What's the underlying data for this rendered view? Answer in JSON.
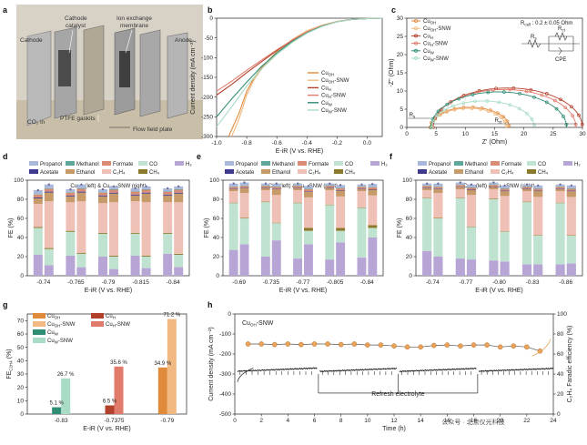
{
  "panel_labels": {
    "a": "a",
    "b": "b",
    "c": "c",
    "d": "d",
    "e": "e",
    "f": "f",
    "g": "g",
    "h": "h"
  },
  "colors": {
    "propanol": "#a9b8da",
    "methanol": "#5fa79b",
    "formate": "#d98b73",
    "co": "#bfe3d0",
    "h2": "#b7a5d6",
    "acetate": "#3e3b8f",
    "ethanol": "#c79a6a",
    "c2h4": "#efc0b6",
    "ch4": "#8c7a2c",
    "cuoh": "#e08a3c",
    "cuoh_snw": "#f1b981",
    "cuh": "#b2412b",
    "cuh_snw": "#e07a6a",
    "cuw": "#2f8c75",
    "cuw_snw": "#a8dcc6",
    "trend": "#e8a25a"
  },
  "photo": {
    "labels": [
      {
        "key": "cathode",
        "text": "Cathode"
      },
      {
        "key": "cathode_catalyst_1",
        "text": "Cathode"
      },
      {
        "key": "cathode_catalyst_2",
        "text": "catalyst"
      },
      {
        "key": "ion_1",
        "text": "Ion exchange"
      },
      {
        "key": "ion_2",
        "text": "membrane"
      },
      {
        "key": "anode",
        "text": "Anode"
      },
      {
        "key": "co2",
        "text": "CO₂ in"
      },
      {
        "key": "ptfe",
        "text": "PTFE gaskits"
      },
      {
        "key": "flow",
        "text": "Flow field plate"
      }
    ]
  },
  "panel_b": {
    "title": "",
    "xlabel": "E-iR (V vs. RHE)",
    "ylabel": "Current density (mA cm⁻²)",
    "xlim": [
      -1.0,
      0.1
    ],
    "ylim": [
      -300,
      0
    ],
    "xticks": [
      "-1.0",
      "-0.8",
      "-0.6",
      "-0.4",
      "-0.2",
      "0.0"
    ],
    "yticks": [
      "0",
      "-50",
      "-100",
      "-150",
      "-200",
      "-250",
      "-300"
    ],
    "legend": [
      "Cu_OH",
      "Cu_OH-SNW",
      "Cu_H",
      "Cu_H-SNW",
      "Cu_W",
      "Cu_W-SNW"
    ],
    "legend_display": [
      {
        "base": "Cu",
        "sub": "OH",
        "suffix": ""
      },
      {
        "base": "Cu",
        "sub": "OH",
        "suffix": "-SNW"
      },
      {
        "base": "Cu",
        "sub": "H",
        "suffix": ""
      },
      {
        "base": "Cu",
        "sub": "H",
        "suffix": "-SNW"
      },
      {
        "base": "Cu",
        "sub": "W",
        "suffix": ""
      },
      {
        "base": "Cu",
        "sub": "W",
        "suffix": "-SNW"
      }
    ]
  },
  "panel_c": {
    "xlabel": "Z' (Ohm)",
    "ylabel": "-Z'' (Ohm)",
    "xlim": [
      0,
      30
    ],
    "ylim": [
      0,
      30
    ],
    "xticks": [
      "0",
      "5",
      "10",
      "15",
      "20",
      "25",
      "30"
    ],
    "yticks": [
      "0",
      "5",
      "10",
      "15",
      "20",
      "25",
      "30"
    ],
    "annotation": "R_cell : 0.2 ± 0.05 Ohm",
    "annotation_parts": {
      "base": "R",
      "sub": "cell",
      "rest": " : 0.2 ± 0.05 Ohm"
    },
    "r_label": "R",
    "r_sub": "s",
    "rct_label": "R",
    "rct_sub": "ct",
    "cpe": "CPE"
  },
  "fe_legend": [
    {
      "key": "propanol",
      "text": "Propanol"
    },
    {
      "key": "methanol",
      "text": "Methanol"
    },
    {
      "key": "formate",
      "text": "Formate"
    },
    {
      "key": "co",
      "text": "CO"
    },
    {
      "key": "h2",
      "text": "H₂"
    },
    {
      "key": "acetate",
      "text": "Acetate"
    },
    {
      "key": "ethanol",
      "text": "Ethanol"
    },
    {
      "key": "c2h4",
      "text": "C₂H₄"
    },
    {
      "key": "ch4",
      "text": "CH₄"
    }
  ],
  "panel_d": {
    "subtitle": "Cu_OH (left) & Cu_OH-SNW (right)",
    "sub_parts": [
      "Cu",
      "OH",
      " (left) & Cu",
      "OH",
      "-SNW (right)"
    ],
    "xlabel": "E-iR (V vs. RHE)",
    "ylabel": "FE (%)",
    "categories": [
      "-0.74",
      "-0.765",
      "-0.79",
      "-0.815",
      "-0.84"
    ],
    "yticks": [
      "0",
      "20",
      "40",
      "60",
      "80",
      "100"
    ]
  },
  "panel_e": {
    "subtitle": "Cu_H (left) & Cu_H-SNW (right)",
    "sub_parts": [
      "Cu",
      "H",
      " (left) & Cu",
      "H",
      "-SNW (right)"
    ],
    "xlabel": "E-iR (V vs. RHE)",
    "ylabel": "FE (%)",
    "categories": [
      "-0.69",
      "-0.735",
      "-0.77",
      "-0.805",
      "-0.84"
    ],
    "yticks": [
      "0",
      "20",
      "40",
      "60",
      "80",
      "100"
    ]
  },
  "panel_f": {
    "subtitle": "Cu_W (left) & Cu_W-SNW (right)",
    "sub_parts": [
      "Cu",
      "W",
      " (left) & Cu",
      "W",
      "-SNW (right)"
    ],
    "xlabel": "E-iR (V vs. RHE)",
    "ylabel": "FE (%)",
    "categories": [
      "-0.74",
      "-0.77",
      "-0.80",
      "-0.83",
      "-0.86"
    ],
    "yticks": [
      "0",
      "20",
      "40",
      "60",
      "80",
      "100"
    ]
  },
  "panel_g": {
    "xlabel": "E-iR (V vs. RHE)",
    "ylabel": "FE_C2H4 (%)",
    "ylabel_parts": {
      "base": "FE",
      "sub": "C2H4",
      "rest": " (%)"
    },
    "categories": [
      "-0.83",
      "-0.7375",
      "-0.79"
    ],
    "yticks": [
      "0",
      "10",
      "20",
      "30",
      "40",
      "50",
      "60",
      "70"
    ],
    "value_labels": [
      "5.1 %",
      "26.7 %",
      "6.5 %",
      "35.6 %",
      "34.9 %",
      "71.2 %"
    ],
    "legend": [
      {
        "key": "cuoh",
        "base": "Cu",
        "sub": "OH",
        "suffix": ""
      },
      {
        "key": "cuoh_snw",
        "base": "Cu",
        "sub": "OH",
        "suffix": "-SNW"
      },
      {
        "key": "cuw",
        "base": "Cu",
        "sub": "W",
        "suffix": ""
      },
      {
        "key": "cuw_snw",
        "base": "Cu",
        "sub": "W",
        "suffix": "-SNW"
      },
      {
        "key": "cuh",
        "base": "Cu",
        "sub": "H",
        "suffix": ""
      },
      {
        "key": "cuh_snw",
        "base": "Cu",
        "sub": "H",
        "suffix": "-SNW"
      }
    ]
  },
  "panel_h": {
    "series_label": {
      "base": "Cu",
      "sub": "OH",
      "suffix": "-SNW"
    },
    "xlabel": "Time (h)",
    "ylabel_left": "Current density (mA cm⁻²)",
    "ylabel_right": "C₂H₄ Faradic efficiency (%)",
    "xticks": [
      "0",
      "2",
      "4",
      "6",
      "8",
      "10",
      "12",
      "14",
      "16",
      "18",
      "20",
      "22",
      "24"
    ],
    "yticks_left": [
      "-500",
      "-400",
      "-300",
      "-200",
      "-100",
      "0"
    ],
    "yticks_right": [
      "0",
      "20",
      "40",
      "60",
      "80",
      "100"
    ],
    "refresh_label": "Refresh electrolyte",
    "watermark": "公众号 · 北京仪光科技"
  },
  "chart_data": [
    {
      "type": "line",
      "panel": "b",
      "xlabel": "E-iR (V vs. RHE)",
      "ylabel": "Current density (mA cm⁻²)",
      "xlim": [
        -1.0,
        0.1
      ],
      "ylim": [
        -300,
        0
      ],
      "series": [
        {
          "name": "Cu_OH",
          "x": [
            -0.92,
            -0.85,
            -0.8,
            -0.75,
            -0.7,
            -0.6,
            -0.5,
            -0.4,
            -0.3,
            -0.2,
            -0.1,
            0.0,
            0.1
          ],
          "y": [
            -300,
            -240,
            -185,
            -150,
            -125,
            -85,
            -55,
            -32,
            -18,
            -8,
            -3,
            -1,
            0
          ]
        },
        {
          "name": "Cu_OH-SNW",
          "x": [
            -0.9,
            -0.85,
            -0.8,
            -0.75,
            -0.7,
            -0.6,
            -0.5,
            -0.4,
            -0.3,
            -0.2,
            -0.1,
            0.0,
            0.1
          ],
          "y": [
            -300,
            -255,
            -195,
            -155,
            -128,
            -87,
            -56,
            -33,
            -18,
            -8,
            -3,
            -1,
            0
          ]
        },
        {
          "name": "Cu_H",
          "x": [
            -1.0,
            -0.9,
            -0.8,
            -0.7,
            -0.6,
            -0.5,
            -0.4,
            -0.3,
            -0.2,
            -0.1,
            0.0,
            0.1
          ],
          "y": [
            -195,
            -168,
            -138,
            -110,
            -82,
            -57,
            -36,
            -20,
            -9,
            -3,
            -1,
            0
          ]
        },
        {
          "name": "Cu_H-SNW",
          "x": [
            -1.0,
            -0.9,
            -0.8,
            -0.7,
            -0.6,
            -0.5,
            -0.4,
            -0.3,
            -0.2,
            -0.1,
            0.0,
            0.1
          ],
          "y": [
            -185,
            -160,
            -132,
            -106,
            -80,
            -56,
            -35,
            -20,
            -9,
            -3,
            -1,
            0
          ]
        },
        {
          "name": "Cu_W",
          "x": [
            -1.0,
            -0.9,
            -0.8,
            -0.7,
            -0.6,
            -0.5,
            -0.4,
            -0.3,
            -0.2,
            -0.1,
            0.0,
            0.1
          ],
          "y": [
            -250,
            -205,
            -162,
            -122,
            -88,
            -60,
            -37,
            -20,
            -9,
            -3,
            -1,
            0
          ]
        },
        {
          "name": "Cu_W-SNW",
          "x": [
            -1.0,
            -0.9,
            -0.8,
            -0.7,
            -0.6,
            -0.5,
            -0.4,
            -0.3,
            -0.2,
            -0.1,
            0.0,
            0.1
          ],
          "y": [
            -275,
            -225,
            -172,
            -128,
            -92,
            -62,
            -38,
            -21,
            -9,
            -3,
            -1,
            0
          ]
        }
      ]
    },
    {
      "type": "scatter",
      "panel": "c",
      "xlabel": "Z' (Ohm)",
      "ylabel": "-Z'' (Ohm)",
      "xlim": [
        0,
        30
      ],
      "ylim": [
        0,
        30
      ],
      "series": [
        {
          "name": "Cu_OH",
          "rs": 4.0,
          "rct": 13.5,
          "depress": 0.82
        },
        {
          "name": "Cu_OH-SNW",
          "rs": 4.2,
          "rct": 12.8,
          "depress": 0.82
        },
        {
          "name": "Cu_H",
          "rs": 4.5,
          "rct": 25.5,
          "depress": 0.85
        },
        {
          "name": "Cu_H-SNW",
          "rs": 4.4,
          "rct": 24.5,
          "depress": 0.85
        },
        {
          "name": "Cu_W",
          "rs": 4.1,
          "rct": 23.2,
          "depress": 0.84
        },
        {
          "name": "Cu_W-SNW",
          "rs": 4.3,
          "rct": 17.5,
          "depress": 0.83
        }
      ]
    },
    {
      "type": "bar",
      "stacked": true,
      "panel": "d",
      "categories": [
        "-0.74",
        "-0.765",
        "-0.79",
        "-0.815",
        "-0.84"
      ],
      "stack_order": [
        "h2",
        "co",
        "ch4",
        "c2h4",
        "ethanol",
        "acetate",
        "formate",
        "methanol",
        "propanol"
      ],
      "left": [
        [
          22,
          28,
          1,
          24,
          6,
          1,
          3,
          0.5,
          4
        ],
        [
          21,
          25,
          1,
          30,
          6,
          1,
          3,
          0.5,
          3
        ],
        [
          20,
          24,
          1,
          31,
          7,
          1,
          3,
          0.5,
          3
        ],
        [
          21,
          23,
          1,
          33,
          6,
          1,
          3,
          0.5,
          3
        ],
        [
          23,
          21,
          1,
          32,
          7,
          1,
          3,
          0.5,
          3
        ]
      ],
      "right": [
        [
          11,
          17,
          1,
          49,
          9,
          1,
          3,
          0.5,
          4
        ],
        [
          9,
          14,
          1,
          54,
          9,
          1,
          3,
          0.5,
          4
        ],
        [
          7,
          13,
          1,
          56,
          9,
          1,
          3,
          0.5,
          3
        ],
        [
          8,
          12,
          1,
          56,
          9,
          1,
          3,
          0.5,
          3
        ],
        [
          9,
          13,
          1,
          54,
          9,
          1,
          3,
          0.5,
          3
        ]
      ]
    },
    {
      "type": "bar",
      "stacked": true,
      "panel": "e",
      "categories": [
        "-0.69",
        "-0.735",
        "-0.77",
        "-0.805",
        "-0.84"
      ],
      "stack_order": [
        "h2",
        "co",
        "ch4",
        "c2h4",
        "ethanol",
        "acetate",
        "formate",
        "methanol",
        "propanol"
      ],
      "left": [
        [
          27,
          49,
          0.5,
          12,
          2,
          0.5,
          2,
          0.5,
          3
        ],
        [
          20,
          57,
          0.5,
          12,
          2,
          0.5,
          2,
          0.5,
          2
        ],
        [
          18,
          58,
          0.5,
          13,
          2,
          0.5,
          2,
          0.5,
          2
        ],
        [
          17,
          57,
          0.5,
          15,
          2,
          0.5,
          2,
          0.5,
          2
        ],
        [
          19,
          52,
          0.5,
          17,
          2,
          0.5,
          2,
          0.5,
          2
        ]
      ],
      "right": [
        [
          33,
          27,
          0.5,
          26,
          5,
          0.5,
          2,
          0.5,
          3
        ],
        [
          37,
          18,
          0.5,
          29,
          6,
          0.5,
          2,
          0.5,
          3
        ],
        [
          33,
          14,
          3,
          32,
          6,
          0.5,
          2,
          0.5,
          3
        ],
        [
          35,
          12,
          3,
          33,
          6,
          0.5,
          2,
          0.5,
          3
        ],
        [
          40,
          10,
          3,
          31,
          6,
          0.5,
          2,
          0.5,
          3
        ]
      ]
    },
    {
      "type": "bar",
      "stacked": true,
      "panel": "f",
      "categories": [
        "-0.74",
        "-0.77",
        "-0.80",
        "-0.83",
        "-0.86"
      ],
      "stack_order": [
        "h2",
        "co",
        "ch4",
        "c2h4",
        "ethanol",
        "acetate",
        "formate",
        "methanol",
        "propanol"
      ],
      "left": [
        [
          26,
          55,
          0.5,
          8,
          2,
          0.5,
          2,
          0.5,
          2
        ],
        [
          18,
          63,
          0.5,
          9,
          2,
          0.5,
          2,
          0.5,
          2
        ],
        [
          16,
          64,
          0.5,
          10,
          2,
          0.5,
          2,
          0.5,
          2
        ],
        [
          12,
          65,
          0.5,
          11,
          2,
          0.5,
          2,
          0.5,
          2
        ],
        [
          12,
          64,
          0.5,
          12,
          2,
          0.5,
          2,
          0.5,
          2
        ]
      ],
      "right": [
        [
          20,
          40,
          0.5,
          26,
          4,
          0.5,
          2,
          0.5,
          3
        ],
        [
          17,
          34,
          0.5,
          33,
          5,
          0.5,
          2,
          0.5,
          3
        ],
        [
          15,
          31,
          0.5,
          37,
          5,
          0.5,
          2,
          0.5,
          3
        ],
        [
          12,
          30,
          0.5,
          40,
          6,
          0.5,
          2,
          0.5,
          3
        ],
        [
          13,
          29,
          0.5,
          40,
          6,
          0.5,
          2,
          0.5,
          3
        ]
      ]
    },
    {
      "type": "bar",
      "panel": "g",
      "categories": [
        "-0.83",
        "-0.7375",
        "-0.79"
      ],
      "ylim": [
        0,
        75
      ],
      "bars": [
        {
          "category": "-0.83",
          "series": "Cu_W",
          "color_key": "cuw",
          "value": 5.1
        },
        {
          "category": "-0.83",
          "series": "Cu_W-SNW",
          "color_key": "cuw_snw",
          "value": 26.7
        },
        {
          "category": "-0.7375",
          "series": "Cu_H",
          "color_key": "cuh",
          "value": 6.5
        },
        {
          "category": "-0.7375",
          "series": "Cu_H-SNW",
          "color_key": "cuh_snw",
          "value": 35.6
        },
        {
          "category": "-0.79",
          "series": "Cu_OH",
          "color_key": "cuoh",
          "value": 34.9
        },
        {
          "category": "-0.79",
          "series": "Cu_OH-SNW",
          "color_key": "cuoh_snw",
          "value": 71.2
        }
      ]
    },
    {
      "type": "line",
      "panel": "h",
      "xlabel": "Time (h)",
      "xlim": [
        0,
        24
      ],
      "ylim_left": [
        -500,
        0
      ],
      "ylim_right": [
        0,
        100
      ],
      "fe_series": {
        "name": "C2H4 FE",
        "x": [
          1,
          2,
          3,
          4,
          5,
          6,
          7,
          8,
          9,
          10,
          11,
          12,
          13,
          14,
          15,
          16,
          17,
          18,
          19,
          20,
          21,
          22,
          23
        ],
        "y": [
          70,
          70,
          69.5,
          70,
          69.5,
          70,
          70,
          69.5,
          70,
          69,
          69,
          68,
          67,
          67,
          68.5,
          69,
          68,
          69,
          69,
          67,
          68,
          67,
          63
        ]
      },
      "current_series": {
        "name": "Current density",
        "segments": [
          {
            "x": [
              0.2,
              6.2
            ],
            "y": [
              -286,
              -270
            ]
          },
          {
            "x": [
              6.4,
              12.2
            ],
            "y": [
              -287,
              -272
            ]
          },
          {
            "x": [
              12.4,
              18.2
            ],
            "y": [
              -287,
              -272
            ]
          },
          {
            "x": [
              18.4,
              24.0
            ],
            "y": [
              -286,
              -272
            ]
          }
        ]
      },
      "refresh_times": [
        6.3,
        12.3,
        18.3
      ]
    }
  ]
}
